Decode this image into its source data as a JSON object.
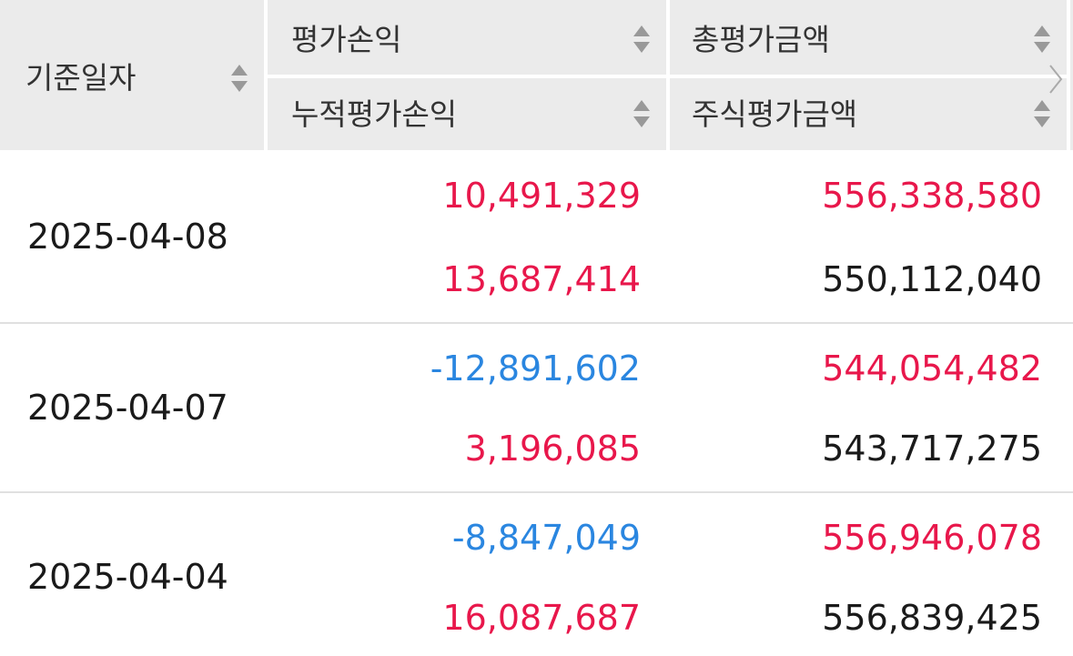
{
  "header": {
    "date": "기준일자",
    "eval_pl": "평가손익",
    "cum_eval_pl": "누적평가손익",
    "total_eval": "총평가금액",
    "stock_eval": "주식평가금액"
  },
  "rows": [
    {
      "date": "2025-04-08",
      "eval_pl": "10,491,329",
      "cum_eval_pl": "13,687,414",
      "total_eval": "556,338,580",
      "stock_eval": "550,112,040"
    },
    {
      "date": "2025-04-07",
      "eval_pl": "-12,891,602",
      "cum_eval_pl": "3,196,085",
      "total_eval": "544,054,482",
      "stock_eval": "543,717,275"
    },
    {
      "date": "2025-04-04",
      "eval_pl": "-8,847,049",
      "cum_eval_pl": "16,087,687",
      "total_eval": "556,946,078",
      "stock_eval": "556,839,425"
    }
  ]
}
